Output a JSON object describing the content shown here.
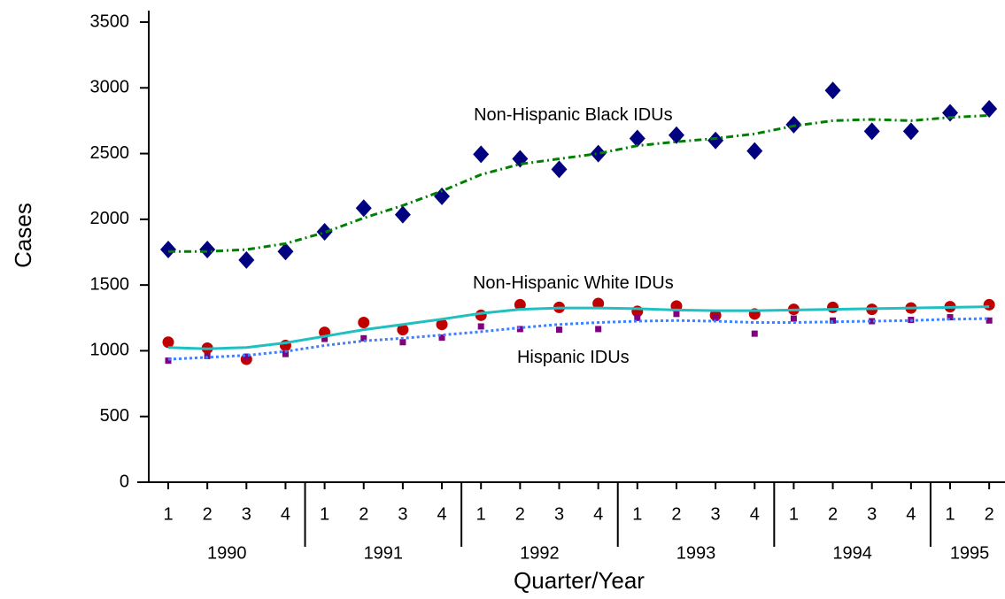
{
  "chart_data": {
    "type": "scatter-fit",
    "x_label": "Quarter/Year",
    "y_label": "Cases",
    "categories": [
      "1",
      "2",
      "3",
      "4",
      "1",
      "2",
      "3",
      "4",
      "1",
      "2",
      "3",
      "4",
      "1",
      "2",
      "3",
      "4",
      "1",
      "2",
      "3",
      "4",
      "1",
      "2"
    ],
    "years": [
      "1990",
      "1991",
      "1992",
      "1993",
      "1994",
      "1995"
    ],
    "ylim": [
      0,
      3500
    ],
    "yticks": [
      0,
      500,
      1000,
      1500,
      2000,
      2500,
      3000,
      3500
    ],
    "series": [
      {
        "name": "Non-Hispanic Black IDUs",
        "color": "#000080",
        "marker": "diamond",
        "values": [
          1770,
          1770,
          1690,
          1755,
          1905,
          2085,
          2035,
          2175,
          2495,
          2460,
          2380,
          2500,
          2615,
          2640,
          2600,
          2520,
          2720,
          2980,
          2670,
          2670,
          2810,
          2840
        ]
      },
      {
        "name": "Non-Hispanic White IDUs",
        "color": "#c00000",
        "marker": "circle",
        "values": [
          1065,
          1020,
          935,
          1040,
          1140,
          1215,
          1160,
          1200,
          1270,
          1350,
          1330,
          1360,
          1300,
          1340,
          1270,
          1280,
          1315,
          1330,
          1315,
          1325,
          1335,
          1350
        ]
      },
      {
        "name": "Hispanic IDUs",
        "color": "#800080",
        "marker": "square",
        "values": [
          925,
          960,
          955,
          975,
          1090,
          1095,
          1065,
          1100,
          1185,
          1165,
          1160,
          1165,
          1250,
          1280,
          1250,
          1130,
          1245,
          1230,
          1225,
          1235,
          1255,
          1230
        ]
      },
      {
        "color": "#008000",
        "dash": "8 4 2 4",
        "width": 3,
        "values": [
          1755,
          1755,
          1770,
          1815,
          1900,
          2010,
          2105,
          2215,
          2340,
          2420,
          2460,
          2500,
          2560,
          2590,
          2615,
          2650,
          2710,
          2750,
          2760,
          2750,
          2775,
          2790
        ]
      },
      {
        "color": "#20c0c0",
        "dash": "none",
        "width": 3,
        "values": [
          1025,
          1015,
          1025,
          1060,
          1110,
          1160,
          1200,
          1240,
          1285,
          1315,
          1325,
          1325,
          1320,
          1310,
          1305,
          1305,
          1310,
          1315,
          1320,
          1325,
          1330,
          1335
        ]
      },
      {
        "color": "#4080ff",
        "dash": "3 3",
        "width": 3,
        "values": [
          935,
          950,
          965,
          995,
          1040,
          1075,
          1095,
          1120,
          1145,
          1175,
          1200,
          1215,
          1225,
          1230,
          1225,
          1215,
          1215,
          1220,
          1225,
          1230,
          1240,
          1245
        ]
      }
    ]
  }
}
